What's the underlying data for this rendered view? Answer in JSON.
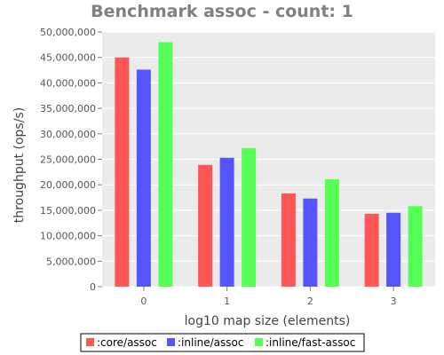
{
  "chart_data": {
    "type": "bar",
    "title": "Benchmark assoc - count: 1",
    "xlabel": "log10 map size (elements)",
    "ylabel": "throughput (ops/s)",
    "categories": [
      "0",
      "1",
      "2",
      "3"
    ],
    "ylim": [
      0,
      50000000
    ],
    "yticks": [
      0,
      5000000,
      10000000,
      15000000,
      20000000,
      25000000,
      30000000,
      35000000,
      40000000,
      45000000,
      50000000
    ],
    "ytick_labels": [
      "0",
      "5,000,000",
      "10,000,000",
      "15,000,000",
      "20,000,000",
      "25,000,000",
      "30,000,000",
      "35,000,000",
      "40,000,000",
      "45,000,000",
      "50,000,000"
    ],
    "grid": true,
    "legend_position": "bottom",
    "series": [
      {
        "name": ":core/assoc",
        "color": "#ff5555",
        "values": [
          45000000,
          23900000,
          18300000,
          14300000
        ]
      },
      {
        "name": ":inline/assoc",
        "color": "#5555ff",
        "values": [
          42600000,
          25300000,
          17300000,
          14500000
        ]
      },
      {
        "name": ":inline/fast-assoc",
        "color": "#55ff55",
        "values": [
          48000000,
          27200000,
          21100000,
          15800000
        ]
      }
    ]
  }
}
